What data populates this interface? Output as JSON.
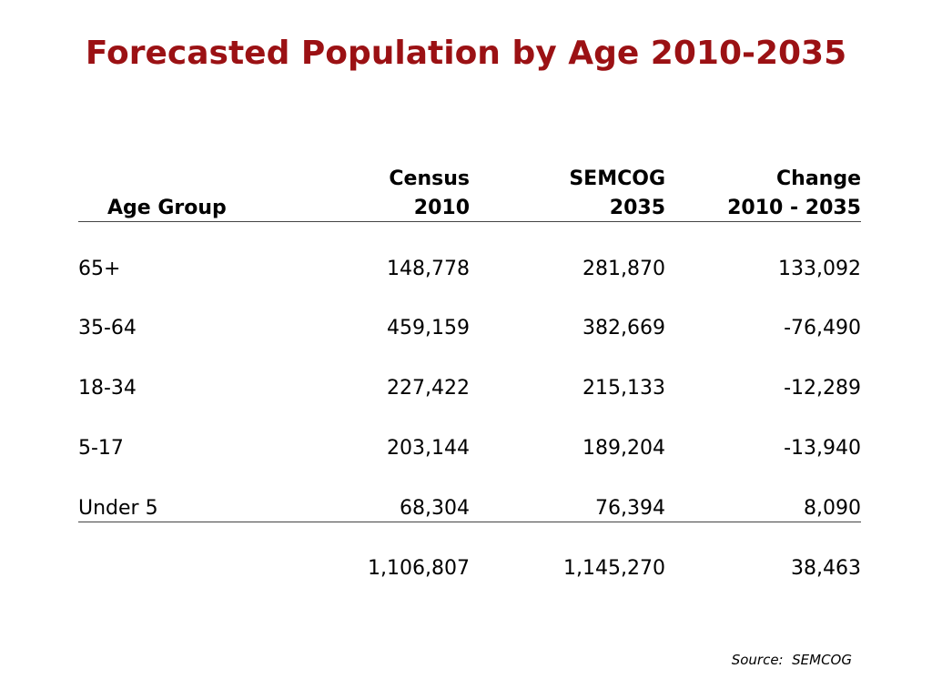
{
  "title": "Forecasted Population by Age 2010-2035",
  "colors": {
    "title": "#9b1114"
  },
  "table": {
    "headers": {
      "age_group": "Age Group",
      "census_line1": "Census",
      "census_line2": "2010",
      "semcog_line1": "SEMCOG",
      "semcog_line2": "2035",
      "change_line1": "Change",
      "change_line2": "2010 - 2035"
    },
    "rows": [
      {
        "age": "65+",
        "census": "148,778",
        "semcog": "281,870",
        "change": "133,092"
      },
      {
        "age": "35-64",
        "census": "459,159",
        "semcog": "382,669",
        "change": "-76,490"
      },
      {
        "age": "18-34",
        "census": "227,422",
        "semcog": "215,133",
        "change": "-12,289"
      },
      {
        "age": "5-17",
        "census": "203,144",
        "semcog": "189,204",
        "change": "-13,940"
      },
      {
        "age": "Under 5",
        "census": "68,304",
        "semcog": "76,394",
        "change": "8,090"
      }
    ],
    "total": {
      "census": "1,106,807",
      "semcog": "1,145,270",
      "change": "38,463"
    }
  },
  "source": "Source:  SEMCOG"
}
